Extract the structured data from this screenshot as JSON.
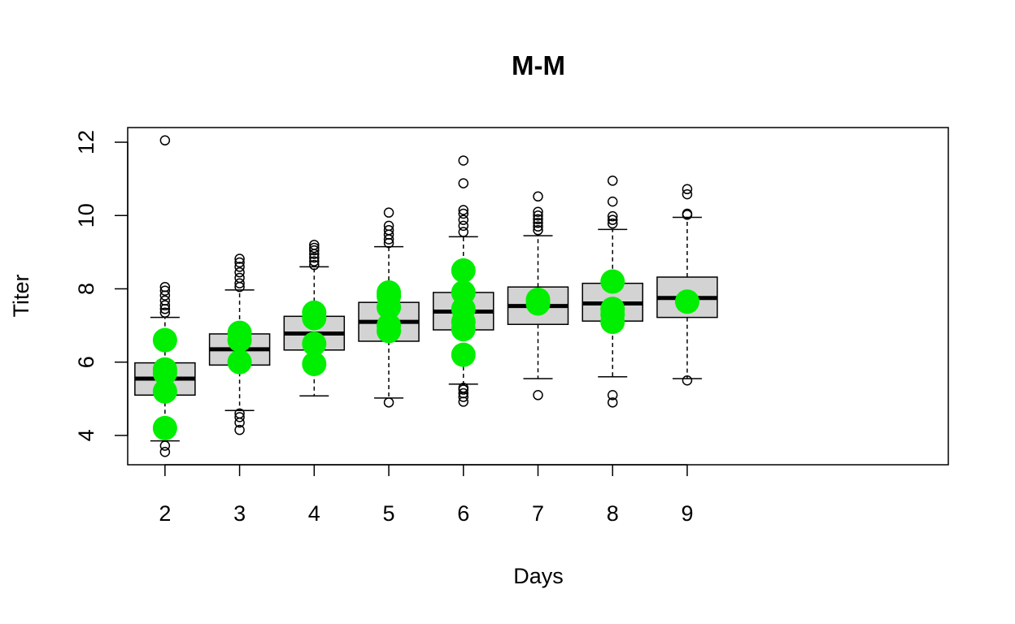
{
  "chart_data": {
    "type": "box",
    "title": "M-M",
    "xlabel": "Days",
    "ylabel": "Titer",
    "categories": [
      "2",
      "3",
      "4",
      "5",
      "6",
      "7",
      "8",
      "9"
    ],
    "yticks": [
      "4",
      "6",
      "8",
      "10",
      "12"
    ],
    "ylim": [
      3.2,
      12.4
    ],
    "xlim": [
      -0.5,
      10.5
    ],
    "grid": false,
    "boxes": [
      {
        "day": "2",
        "whisker_low": 3.85,
        "q1": 5.1,
        "median": 5.55,
        "q3": 5.98,
        "whisker_high": 7.22,
        "outliers": [
          3.55,
          3.72,
          7.35,
          7.45,
          7.55,
          7.68,
          7.82,
          7.95,
          8.05,
          12.05
        ],
        "observed": [
          4.2,
          5.2,
          5.7,
          5.8,
          6.6
        ]
      },
      {
        "day": "3",
        "whisker_low": 4.68,
        "q1": 5.92,
        "median": 6.35,
        "q3": 6.77,
        "whisker_high": 7.97,
        "outliers": [
          4.15,
          4.35,
          4.5,
          4.6,
          8.05,
          8.15,
          8.3,
          8.45,
          8.6,
          8.72,
          8.82
        ],
        "observed": [
          6.0,
          6.6,
          6.8
        ]
      },
      {
        "day": "4",
        "whisker_low": 5.08,
        "q1": 6.33,
        "median": 6.78,
        "q3": 7.25,
        "whisker_high": 8.6,
        "outliers": [
          8.65,
          8.75,
          8.85,
          8.95,
          9.05,
          9.12,
          9.2
        ],
        "observed": [
          5.95,
          6.5,
          7.2,
          7.35
        ]
      },
      {
        "day": "5",
        "whisker_low": 5.02,
        "q1": 6.57,
        "median": 7.1,
        "q3": 7.63,
        "whisker_high": 9.15,
        "outliers": [
          4.9,
          9.25,
          9.35,
          9.48,
          9.6,
          9.72,
          10.08
        ],
        "observed": [
          6.85,
          7.0,
          7.5,
          7.8,
          7.9
        ]
      },
      {
        "day": "6",
        "whisker_low": 5.4,
        "q1": 6.88,
        "median": 7.38,
        "q3": 7.9,
        "whisker_high": 9.42,
        "outliers": [
          4.92,
          5.05,
          5.15,
          5.25,
          5.3,
          9.55,
          9.72,
          9.88,
          10.05,
          10.15,
          10.88,
          11.5
        ],
        "observed": [
          6.2,
          6.9,
          7.1,
          7.45,
          7.9,
          8.5
        ]
      },
      {
        "day": "7",
        "whisker_low": 5.55,
        "q1": 7.03,
        "median": 7.53,
        "q3": 8.05,
        "whisker_high": 9.45,
        "outliers": [
          5.1,
          9.6,
          9.7,
          9.8,
          9.9,
          10.0,
          10.1,
          10.52
        ],
        "observed": [
          7.6,
          7.7
        ]
      },
      {
        "day": "8",
        "whisker_low": 5.6,
        "q1": 7.12,
        "median": 7.6,
        "q3": 8.15,
        "whisker_high": 9.62,
        "outliers": [
          4.9,
          5.1,
          9.78,
          9.88,
          9.98,
          10.38,
          10.95
        ],
        "observed": [
          7.1,
          7.3,
          7.45,
          8.2
        ]
      },
      {
        "day": "9",
        "whisker_low": 5.55,
        "q1": 7.22,
        "median": 7.75,
        "q3": 8.32,
        "whisker_high": 9.95,
        "outliers": [
          5.5,
          10.02,
          10.05,
          10.58,
          10.72
        ],
        "observed": [
          7.65
        ]
      }
    ],
    "colors": {
      "box_fill": "#d3d3d3",
      "observed": "#00ee00",
      "line": "#000000"
    }
  }
}
